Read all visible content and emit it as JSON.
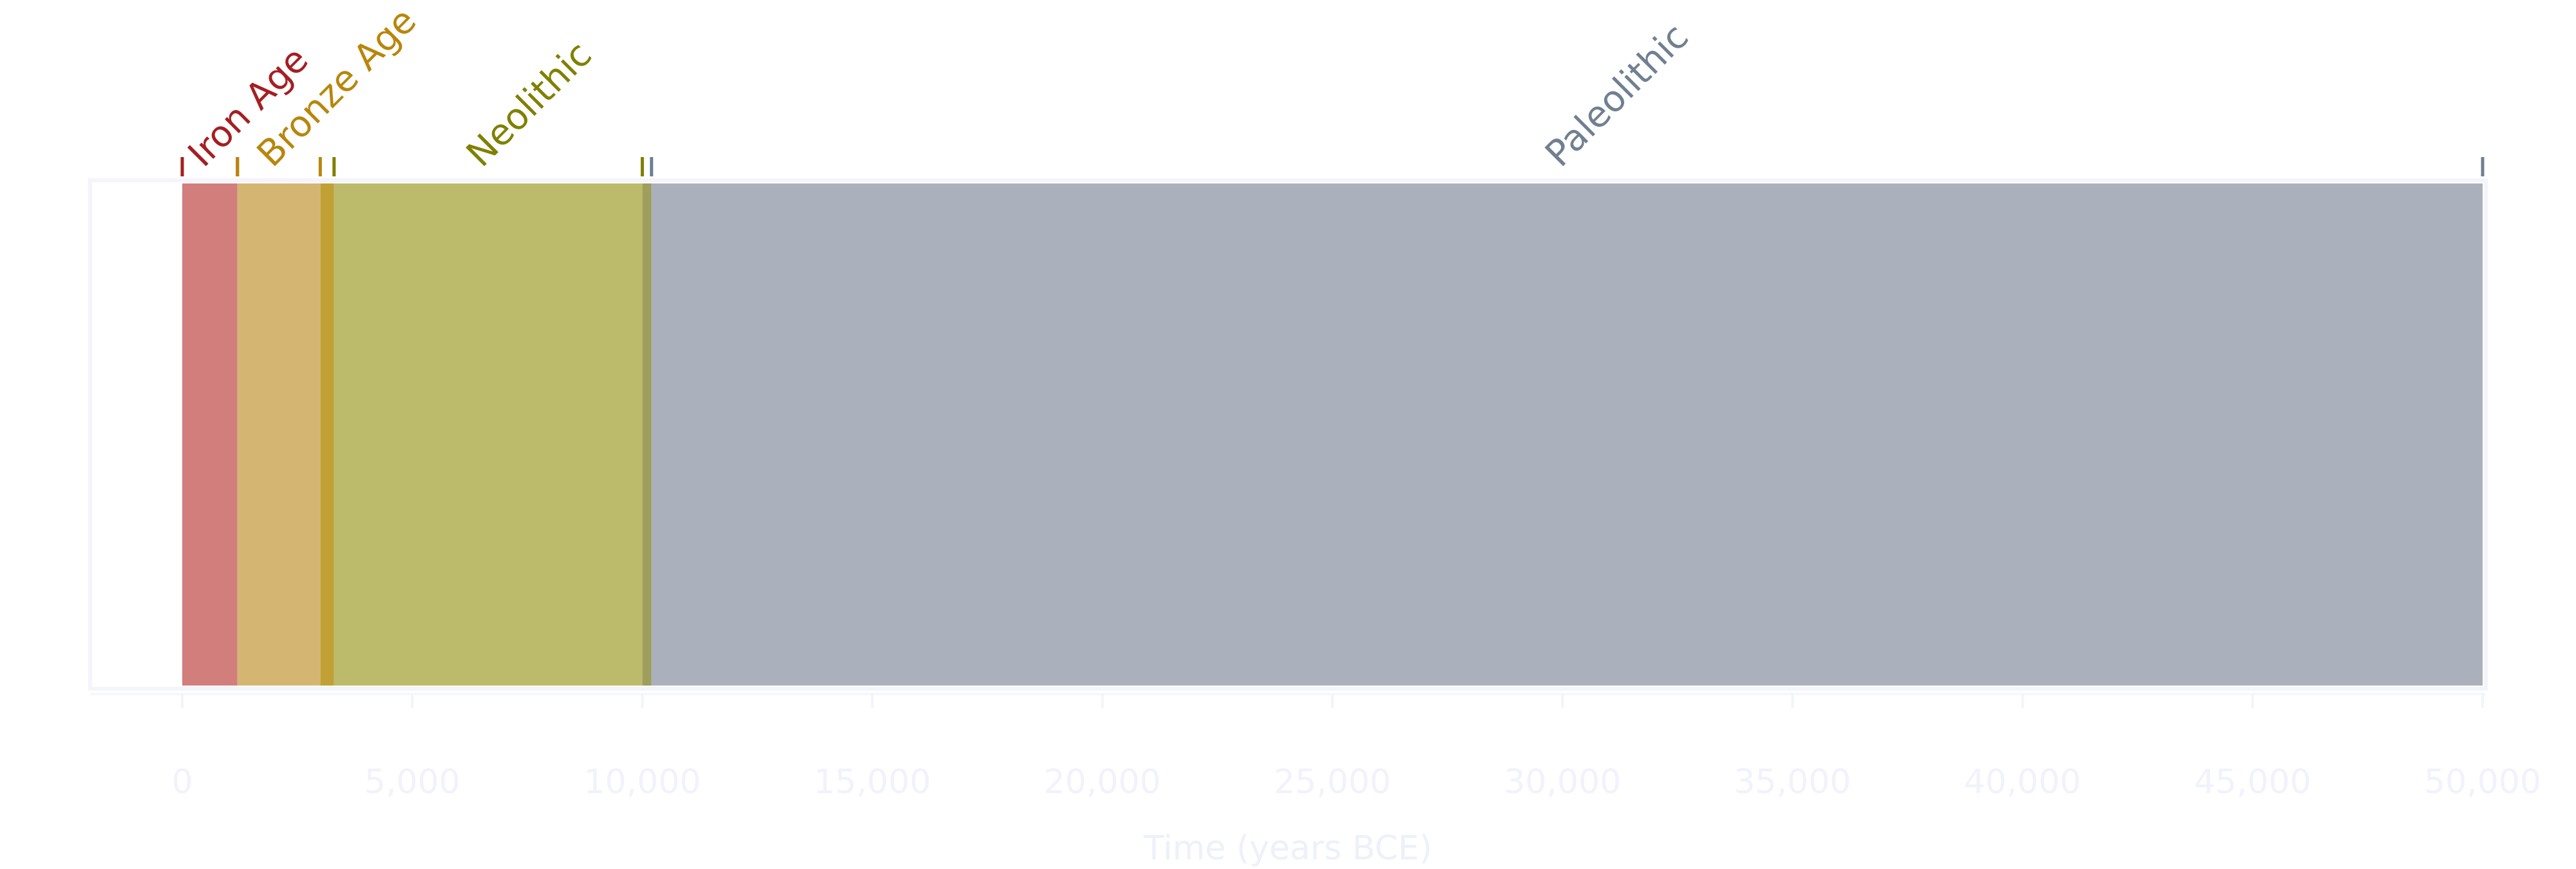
{
  "chart_data": {
    "type": "bar",
    "orientation": "horizontal-timeline",
    "title": "",
    "xlabel": "Time (years BCE)",
    "ylabel": "",
    "xlim": [
      -2000,
      50000
    ],
    "grid": false,
    "legend": "none",
    "x_ticks": [
      {
        "value": 0,
        "label": "0"
      },
      {
        "value": 5000,
        "label": "5,000"
      },
      {
        "value": 10000,
        "label": "10,000"
      },
      {
        "value": 15000,
        "label": "15,000"
      },
      {
        "value": 20000,
        "label": "20,000"
      },
      {
        "value": 25000,
        "label": "25,000"
      },
      {
        "value": 30000,
        "label": "30,000"
      },
      {
        "value": 35000,
        "label": "35,000"
      },
      {
        "value": 40000,
        "label": "40,000"
      },
      {
        "value": 45000,
        "label": "45,000"
      },
      {
        "value": 50000,
        "label": "50,000"
      }
    ],
    "periods": [
      {
        "name": "Iron Age",
        "start": 0,
        "end": 1200,
        "color": "#d27e7c",
        "label_color": "#a61e22"
      },
      {
        "name": "Bronze Age",
        "start": 1200,
        "end": 3000,
        "color": "#d4b672",
        "label_color": "#b8860b"
      },
      {
        "name": "Neolithic",
        "start": 3300,
        "end": 10000,
        "color": "#bcbb6b",
        "label_color": "#808000"
      },
      {
        "name": "Paleolithic",
        "start": 10200,
        "end": 50000,
        "color": "#abb1bc",
        "label_color": "#708090"
      }
    ],
    "transitions": [
      {
        "start": 3000,
        "end": 3300,
        "color": "#c1a135"
      },
      {
        "start": 10000,
        "end": 10200,
        "color": "#9e9f5c"
      }
    ]
  }
}
